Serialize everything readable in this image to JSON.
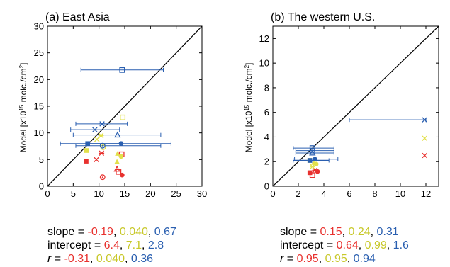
{
  "colors": {
    "red": "#e8312e",
    "yellow": "#e2e04a",
    "blue": "#2a5fb0",
    "fit_line": "#000000"
  },
  "chart_data": [
    {
      "type": "scatter",
      "title": "(a) East Asia",
      "xlabel_main": "Observation  [x10",
      "xlabel_exp": "15",
      "xlabel_unit": " molc./cm",
      "xlabel_unit_exp": "2",
      "xlabel_close": "]",
      "ylabel_main": "Model [x10",
      "ylabel_exp": "15",
      "ylabel_unit": " molc./cm",
      "ylabel_unit_exp": "2",
      "ylabel_close": "]",
      "xlim": [
        0,
        30
      ],
      "ylim": [
        0,
        30
      ],
      "xticks": [
        0,
        5,
        10,
        15,
        20,
        25,
        30
      ],
      "yticks": [
        0,
        5,
        10,
        15,
        20,
        25,
        30
      ],
      "one_to_one_line": true,
      "series": [
        {
          "color": "red",
          "points": [
            {
              "x": 7.5,
              "y": 4.7,
              "marker": "square-filled"
            },
            {
              "x": 9.5,
              "y": 5.0,
              "marker": "x"
            },
            {
              "x": 10.5,
              "y": 6.2,
              "marker": "asterisk"
            },
            {
              "x": 10.7,
              "y": 1.7,
              "marker": "circle-dot"
            },
            {
              "x": 13.5,
              "y": 3.2,
              "marker": "triangle-open"
            },
            {
              "x": 13.8,
              "y": 2.7,
              "marker": "square-open"
            },
            {
              "x": 14.4,
              "y": 6.0,
              "marker": "square-open"
            },
            {
              "x": 14.5,
              "y": 2.1,
              "marker": "circle-filled"
            }
          ]
        },
        {
          "color": "yellow",
          "points": [
            {
              "x": 7.6,
              "y": 6.7,
              "marker": "square-filled"
            },
            {
              "x": 9.6,
              "y": 8.8,
              "marker": "x"
            },
            {
              "x": 10.4,
              "y": 9.5,
              "marker": "asterisk"
            },
            {
              "x": 10.8,
              "y": 7.3,
              "marker": "circle-dot"
            },
            {
              "x": 13.5,
              "y": 4.6,
              "marker": "triangle-filled"
            },
            {
              "x": 13.6,
              "y": 6.1,
              "marker": "triangle-filled"
            },
            {
              "x": 14.3,
              "y": 5.6,
              "marker": "circle-filled"
            },
            {
              "x": 14.6,
              "y": 12.9,
              "marker": "square-open"
            }
          ]
        },
        {
          "color": "blue",
          "points": [
            {
              "x": 7.8,
              "y": 8.0,
              "marker": "square-filled",
              "xerr": [
                2.5,
                14.5
              ]
            },
            {
              "x": 9.2,
              "y": 10.6,
              "marker": "x",
              "xerr": [
                4.5,
                14.0
              ]
            },
            {
              "x": 10.6,
              "y": 11.7,
              "marker": "asterisk",
              "xerr": [
                5.5,
                15.5
              ]
            },
            {
              "x": 10.7,
              "y": 7.6,
              "marker": "circle-dot",
              "xerr": [
                5.5,
                22.0
              ]
            },
            {
              "x": 13.6,
              "y": 9.6,
              "marker": "triangle-open",
              "xerr": [
                5.0,
                22.0
              ]
            },
            {
              "x": 14.3,
              "y": 8.0,
              "marker": "circle-filled",
              "xerr": [
                7.5,
                24.0
              ]
            },
            {
              "x": 14.5,
              "y": 21.8,
              "marker": "square-open",
              "xerr": [
                6.5,
                22.5
              ]
            }
          ]
        }
      ],
      "stats": {
        "slope_label": "slope = ",
        "slope": [
          "-0.19",
          "0.040",
          "0.67"
        ],
        "intercept_label": "intercept = ",
        "intercept": [
          "6.4",
          "7.1",
          "2.8"
        ],
        "r_label": "r",
        "r_eq": " = ",
        "r": [
          "-0.31",
          "0.040",
          "0.36"
        ]
      }
    },
    {
      "type": "scatter",
      "title": "(b) The western U.S.",
      "xlabel_main": "Observation  [x10",
      "xlabel_exp": "15",
      "xlabel_unit": " molc./cm",
      "xlabel_unit_exp": "2",
      "xlabel_close": "]",
      "ylabel_main": "Model [x10",
      "ylabel_exp": "15",
      "ylabel_unit": " molc./cm",
      "ylabel_unit_exp": "2",
      "ylabel_close": "]",
      "xlim": [
        0,
        13
      ],
      "ylim": [
        0,
        13
      ],
      "xticks": [
        0,
        2,
        4,
        6,
        8,
        10,
        12
      ],
      "yticks": [
        0,
        2,
        4,
        6,
        8,
        10,
        12
      ],
      "one_to_one_line": true,
      "series": [
        {
          "color": "red",
          "points": [
            {
              "x": 2.9,
              "y": 1.1,
              "marker": "square-filled"
            },
            {
              "x": 3.1,
              "y": 0.9,
              "marker": "square-open"
            },
            {
              "x": 3.3,
              "y": 1.3,
              "marker": "asterisk"
            },
            {
              "x": 3.5,
              "y": 1.2,
              "marker": "circle-filled"
            },
            {
              "x": 11.9,
              "y": 2.5,
              "marker": "x"
            }
          ]
        },
        {
          "color": "yellow",
          "points": [
            {
              "x": 2.9,
              "y": 2.1,
              "marker": "square-filled"
            },
            {
              "x": 3.1,
              "y": 1.6,
              "marker": "asterisk"
            },
            {
              "x": 3.2,
              "y": 1.9,
              "marker": "triangle-filled"
            },
            {
              "x": 3.4,
              "y": 1.8,
              "marker": "circle-filled"
            },
            {
              "x": 11.9,
              "y": 3.9,
              "marker": "x"
            }
          ]
        },
        {
          "color": "blue",
          "points": [
            {
              "x": 2.9,
              "y": 2.1,
              "marker": "square-filled",
              "xerr": [
                1.6,
                4.4
              ]
            },
            {
              "x": 3.1,
              "y": 3.1,
              "marker": "square-open",
              "xerr": [
                1.6,
                4.8
              ]
            },
            {
              "x": 3.1,
              "y": 2.7,
              "marker": "triangle-open",
              "xerr": [
                1.8,
                4.8
              ]
            },
            {
              "x": 3.1,
              "y": 2.9,
              "marker": "circle-dot",
              "xerr": [
                1.8,
                4.8
              ]
            },
            {
              "x": 3.3,
              "y": 2.2,
              "marker": "circle-filled",
              "xerr": [
                1.7,
                5.1
              ]
            },
            {
              "x": 11.9,
              "y": 5.4,
              "marker": "x",
              "xerr": [
                6.0,
                12.0
              ]
            }
          ]
        }
      ],
      "stats": {
        "slope_label": "slope = ",
        "slope": [
          "0.15",
          "0.24",
          "0.31"
        ],
        "intercept_label": "intercept = ",
        "intercept": [
          "0.64",
          "0.99",
          "1.6"
        ],
        "r_label": "r",
        "r_eq": " = ",
        "r": [
          "0.95",
          "0.95",
          "0.94"
        ]
      }
    }
  ]
}
